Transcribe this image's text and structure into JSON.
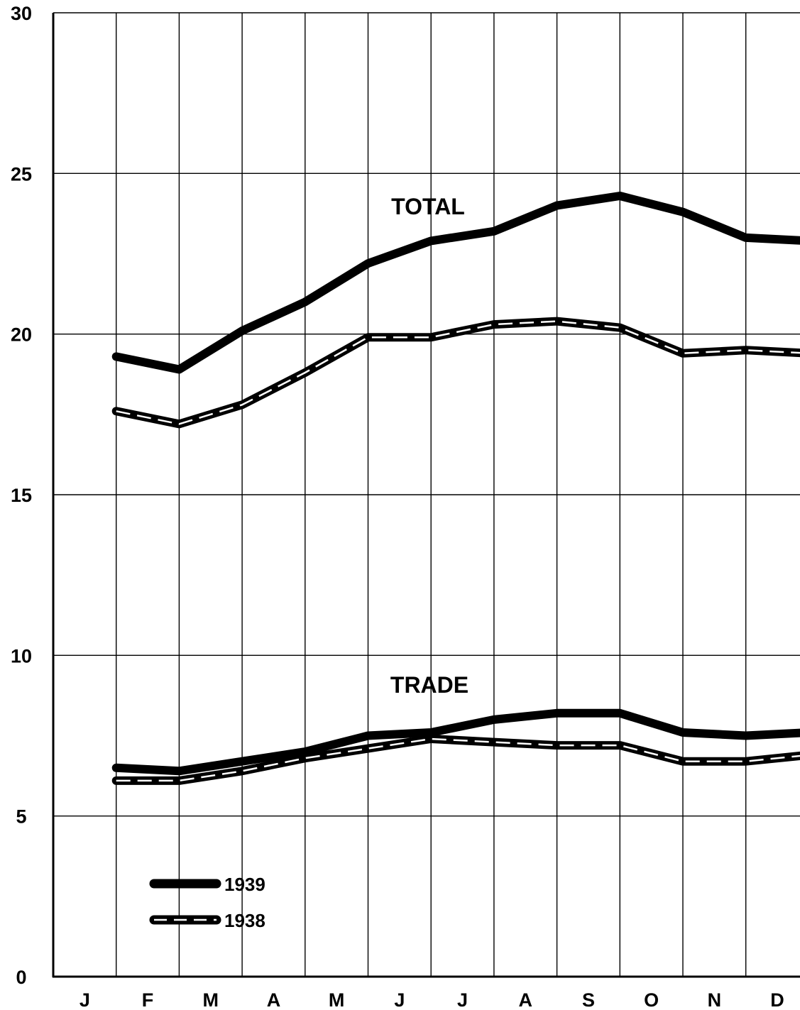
{
  "chart_data": {
    "type": "line",
    "categories": [
      "J",
      "F",
      "M",
      "A",
      "M",
      "J",
      "J",
      "A",
      "S",
      "O",
      "N",
      "D"
    ],
    "ylim": [
      0,
      30
    ],
    "yticks": [
      "0",
      "5",
      "10",
      "15",
      "20",
      "25",
      "30"
    ],
    "grid": true,
    "annotations": [
      "TOTAL",
      "TRADE"
    ],
    "legend": {
      "position": "bottom-left",
      "items": [
        {
          "label": "1939",
          "style": "solid"
        },
        {
          "label": "1938",
          "style": "hollow-dashed"
        }
      ]
    },
    "series": [
      {
        "name": "1939",
        "group": "TOTAL",
        "style": "solid",
        "values": [
          19.3,
          18.9,
          20.1,
          21.0,
          22.2,
          22.9,
          23.2,
          24.0,
          24.3,
          23.8,
          23.0,
          22.9
        ]
      },
      {
        "name": "1938",
        "group": "TOTAL",
        "style": "hollow-dashed",
        "values": [
          17.6,
          17.2,
          17.8,
          18.8,
          19.9,
          19.9,
          20.3,
          20.4,
          20.2,
          19.4,
          19.5,
          19.4
        ]
      },
      {
        "name": "1939",
        "group": "TRADE",
        "style": "solid",
        "values": [
          6.5,
          6.4,
          6.7,
          7.0,
          7.5,
          7.6,
          8.0,
          8.2,
          8.2,
          7.6,
          7.5,
          7.6
        ]
      },
      {
        "name": "1938",
        "group": "TRADE",
        "style": "hollow-dashed",
        "values": [
          6.1,
          6.1,
          6.4,
          6.8,
          7.1,
          7.4,
          7.3,
          7.2,
          7.2,
          6.7,
          6.7,
          6.9
        ]
      }
    ]
  }
}
